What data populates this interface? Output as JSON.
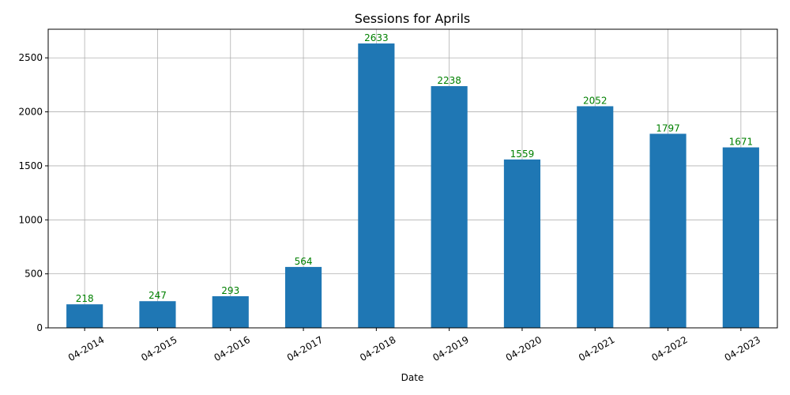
{
  "chart_data": {
    "type": "bar",
    "title": "Sessions for Aprils",
    "xlabel": "Date",
    "ylabel": "",
    "categories": [
      "04-2014",
      "04-2015",
      "04-2016",
      "04-2017",
      "04-2018",
      "04-2019",
      "04-2020",
      "04-2021",
      "04-2022",
      "04-2023"
    ],
    "values": [
      218,
      247,
      293,
      564,
      2633,
      2238,
      1559,
      2052,
      1797,
      1671
    ],
    "ylim": [
      0,
      2765
    ],
    "yticks": [
      0,
      500,
      1000,
      1500,
      2000,
      2500
    ],
    "grid": true,
    "colors": {
      "bar": "#1f77b4",
      "data_label": "#008000",
      "grid": "#b0b0b0"
    }
  }
}
